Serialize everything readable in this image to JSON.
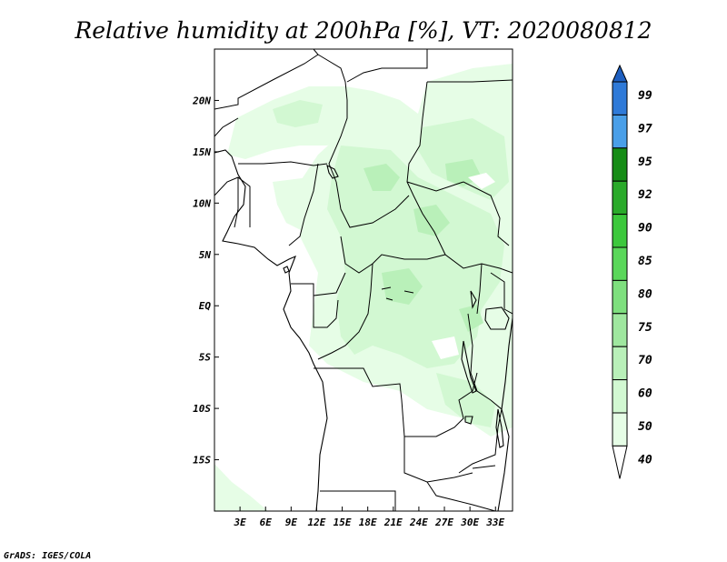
{
  "title": "Relative humidity at 200hPa [%], VT: 2020080812",
  "credit": "GrADS: IGES/COLA",
  "map": {
    "lon_range": [
      0,
      35
    ],
    "lat_range": [
      -20,
      25
    ],
    "x_ticks": [
      "3E",
      "6E",
      "9E",
      "12E",
      "15E",
      "18E",
      "21E",
      "24E",
      "27E",
      "30E",
      "33E"
    ],
    "y_ticks": [
      "20N",
      "15N",
      "10N",
      "5N",
      "EQ",
      "5S",
      "10S",
      "15S"
    ]
  },
  "chart_data": {
    "type": "heatmap",
    "variable": "Relative humidity",
    "level": "200hPa",
    "units": "%",
    "valid_time": "2020080812",
    "colorbar": {
      "levels": [
        40,
        50,
        60,
        70,
        75,
        80,
        85,
        90,
        92,
        95,
        97,
        99
      ],
      "colors": [
        "#ffffff",
        "#e6fde6",
        "#d2f8d2",
        "#b9f0b9",
        "#9fe79f",
        "#7edf7e",
        "#5ad75a",
        "#3cc83c",
        "#2aaa2a",
        "#168c16",
        "#4a9fe8",
        "#2f7ad8",
        "#1e5fc0"
      ]
    }
  },
  "colors": {
    "background": "#ffffff",
    "frame": "#000000"
  }
}
